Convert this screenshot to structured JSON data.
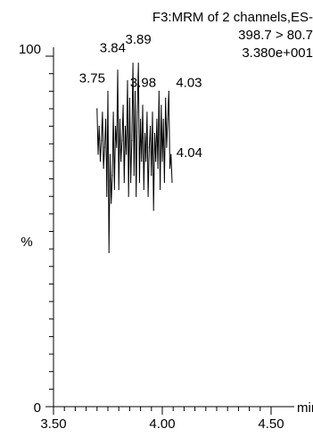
{
  "chart_data": {
    "type": "line",
    "header": [
      "F3:MRM of 2 channels,ES-",
      "398.7 > 80.7",
      "3.380e+001"
    ],
    "xlabel": "min",
    "ylabel": "%",
    "xlim": [
      3.5,
      4.5
    ],
    "ylim": [
      0,
      100
    ],
    "x_ticks": [
      "3.50",
      "4.00",
      "4.50"
    ],
    "y_ticks": [
      "0",
      "100"
    ],
    "grid": false,
    "series": [
      {
        "x": [
          3.7,
          3.705,
          3.71,
          3.715,
          3.72,
          3.725,
          3.73,
          3.735,
          3.74,
          3.745,
          3.75,
          3.755,
          3.76,
          3.765,
          3.77,
          3.775,
          3.78,
          3.785,
          3.79,
          3.795,
          3.8,
          3.805,
          3.81,
          3.815,
          3.82,
          3.825,
          3.83,
          3.835,
          3.84,
          3.845,
          3.85,
          3.855,
          3.86,
          3.865,
          3.87,
          3.875,
          3.88,
          3.885,
          3.89,
          3.895,
          3.9,
          3.905,
          3.91,
          3.915,
          3.92,
          3.925,
          3.93,
          3.935,
          3.94,
          3.945,
          3.95,
          3.955,
          3.96,
          3.965,
          3.97,
          3.975,
          3.98,
          3.985,
          3.99,
          3.995,
          4.0,
          4.005,
          4.01,
          4.015,
          4.02,
          4.025,
          4.03,
          4.035,
          4.04,
          4.045
        ],
        "y": [
          85,
          72,
          80,
          70,
          76,
          84,
          68,
          74,
          82,
          60,
          90,
          44,
          72,
          58,
          66,
          84,
          62,
          80,
          74,
          96,
          62,
          82,
          70,
          76,
          86,
          64,
          80,
          72,
          93,
          60,
          88,
          64,
          76,
          98,
          66,
          90,
          60,
          84,
          98,
          64,
          82,
          70,
          86,
          62,
          78,
          70,
          84,
          60,
          74,
          80,
          66,
          84,
          56,
          78,
          70,
          82,
          68,
          90,
          62,
          86,
          70,
          82,
          64,
          88,
          74,
          82,
          90,
          68,
          72,
          64
        ]
      }
    ],
    "annotations": [
      {
        "label": "3.75",
        "x": 3.75
      },
      {
        "label": "3.84",
        "x": 3.84
      },
      {
        "label": "3.89",
        "x": 3.89
      },
      {
        "label": "3.98",
        "x": 3.98
      },
      {
        "label": "4.03",
        "x": 4.03
      },
      {
        "label": "4.04",
        "x": 4.04
      }
    ]
  }
}
